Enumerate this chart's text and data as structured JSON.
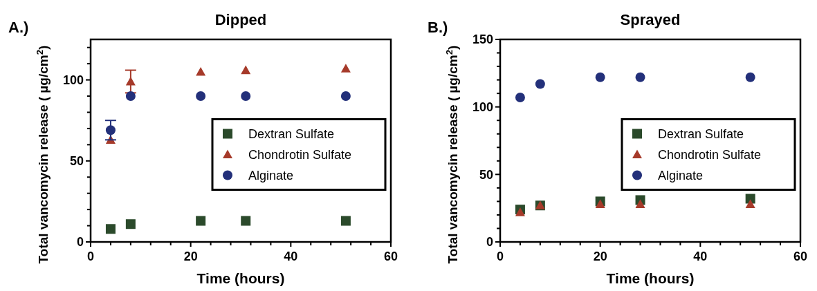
{
  "chart_data": [
    {
      "type": "scatter",
      "title": "Dipped",
      "xlabel": "Time (hours)",
      "ylabel": "Total vancomycin release ( µg/cm$^{2}$)",
      "annotations": [
        "A.)"
      ],
      "legend": "right",
      "grid": false,
      "xlim": [
        0,
        60
      ],
      "xticks": [
        0,
        {
          "value": 4,
          "label": null
        },
        {
          "value": 8,
          "label": null
        },
        {
          "value": 12,
          "label": null
        },
        {
          "value": 16,
          "label": null
        },
        20,
        {
          "value": 24,
          "label": null
        },
        {
          "value": 28,
          "label": null
        },
        {
          "value": 32,
          "label": null
        },
        {
          "value": 36,
          "label": null
        },
        40,
        {
          "value": 44,
          "label": null
        },
        {
          "value": 48,
          "label": null
        },
        {
          "value": 52,
          "label": null
        },
        {
          "value": 56,
          "label": null
        },
        60
      ],
      "ylim": [
        0,
        125
      ],
      "yticks": [
        0,
        {
          "value": 10,
          "label": null
        },
        {
          "value": 20,
          "label": null
        },
        {
          "value": 30,
          "label": null
        },
        {
          "value": 40,
          "label": null
        },
        50,
        {
          "value": 60,
          "label": null
        },
        {
          "value": 70,
          "label": null
        },
        {
          "value": 80,
          "label": null
        },
        {
          "value": 90,
          "label": null
        },
        100,
        {
          "value": 110,
          "label": null
        },
        {
          "value": 120,
          "label": null
        }
      ],
      "x": [
        4,
        8,
        22,
        31,
        51
      ],
      "series": [
        {
          "name": "Dextran Sulfate",
          "color": "#2b4a2b",
          "marker": "square",
          "values": [
            8,
            11,
            13,
            13,
            13
          ]
        },
        {
          "name": "Chondrotin Sulfate",
          "color": "#a63a2a",
          "marker": "triangle",
          "values": [
            63,
            99,
            105,
            106,
            107
          ],
          "errors": [
            null,
            7,
            null,
            null,
            null
          ]
        },
        {
          "name": "Alginate",
          "color": "#23307a",
          "marker": "circle",
          "values": [
            69,
            90,
            90,
            90,
            90
          ],
          "errors": [
            6,
            null,
            null,
            null,
            null
          ]
        }
      ]
    },
    {
      "type": "scatter",
      "title": "Sprayed",
      "xlabel": "Time (hours)",
      "ylabel": "Total vancomycin release ( µg/cm$^{2}$)",
      "annotations": [
        "B.)"
      ],
      "legend": "right",
      "grid": false,
      "xlim": [
        0,
        60
      ],
      "xticks": [
        0,
        {
          "value": 4,
          "label": null
        },
        {
          "value": 8,
          "label": null
        },
        {
          "value": 12,
          "label": null
        },
        {
          "value": 16,
          "label": null
        },
        20,
        {
          "value": 24,
          "label": null
        },
        {
          "value": 28,
          "label": null
        },
        {
          "value": 32,
          "label": null
        },
        {
          "value": 36,
          "label": null
        },
        40,
        {
          "value": 44,
          "label": null
        },
        {
          "value": 48,
          "label": null
        },
        {
          "value": 52,
          "label": null
        },
        {
          "value": 56,
          "label": null
        },
        60
      ],
      "ylim": [
        0,
        150
      ],
      "yticks": [
        0,
        {
          "value": 10,
          "label": null
        },
        {
          "value": 20,
          "label": null
        },
        {
          "value": 30,
          "label": null
        },
        {
          "value": 40,
          "label": null
        },
        50,
        {
          "value": 60,
          "label": null
        },
        {
          "value": 70,
          "label": null
        },
        {
          "value": 80,
          "label": null
        },
        {
          "value": 90,
          "label": null
        },
        100,
        {
          "value": 110,
          "label": null
        },
        {
          "value": 120,
          "label": null
        },
        {
          "value": 130,
          "label": null
        },
        {
          "value": 140,
          "label": null
        },
        150
      ],
      "x": [
        4,
        8,
        20,
        28,
        50
      ],
      "series": [
        {
          "name": "Dextran Sulfate",
          "color": "#2b4a2b",
          "marker": "square",
          "values": [
            24,
            27,
            30,
            31,
            32
          ]
        },
        {
          "name": "Chondrotin Sulfate",
          "color": "#a63a2a",
          "marker": "triangle",
          "values": [
            22,
            27,
            28,
            28,
            28
          ]
        },
        {
          "name": "Alginate",
          "color": "#23307a",
          "marker": "circle",
          "values": [
            107,
            117,
            122,
            122,
            122
          ]
        }
      ]
    }
  ]
}
